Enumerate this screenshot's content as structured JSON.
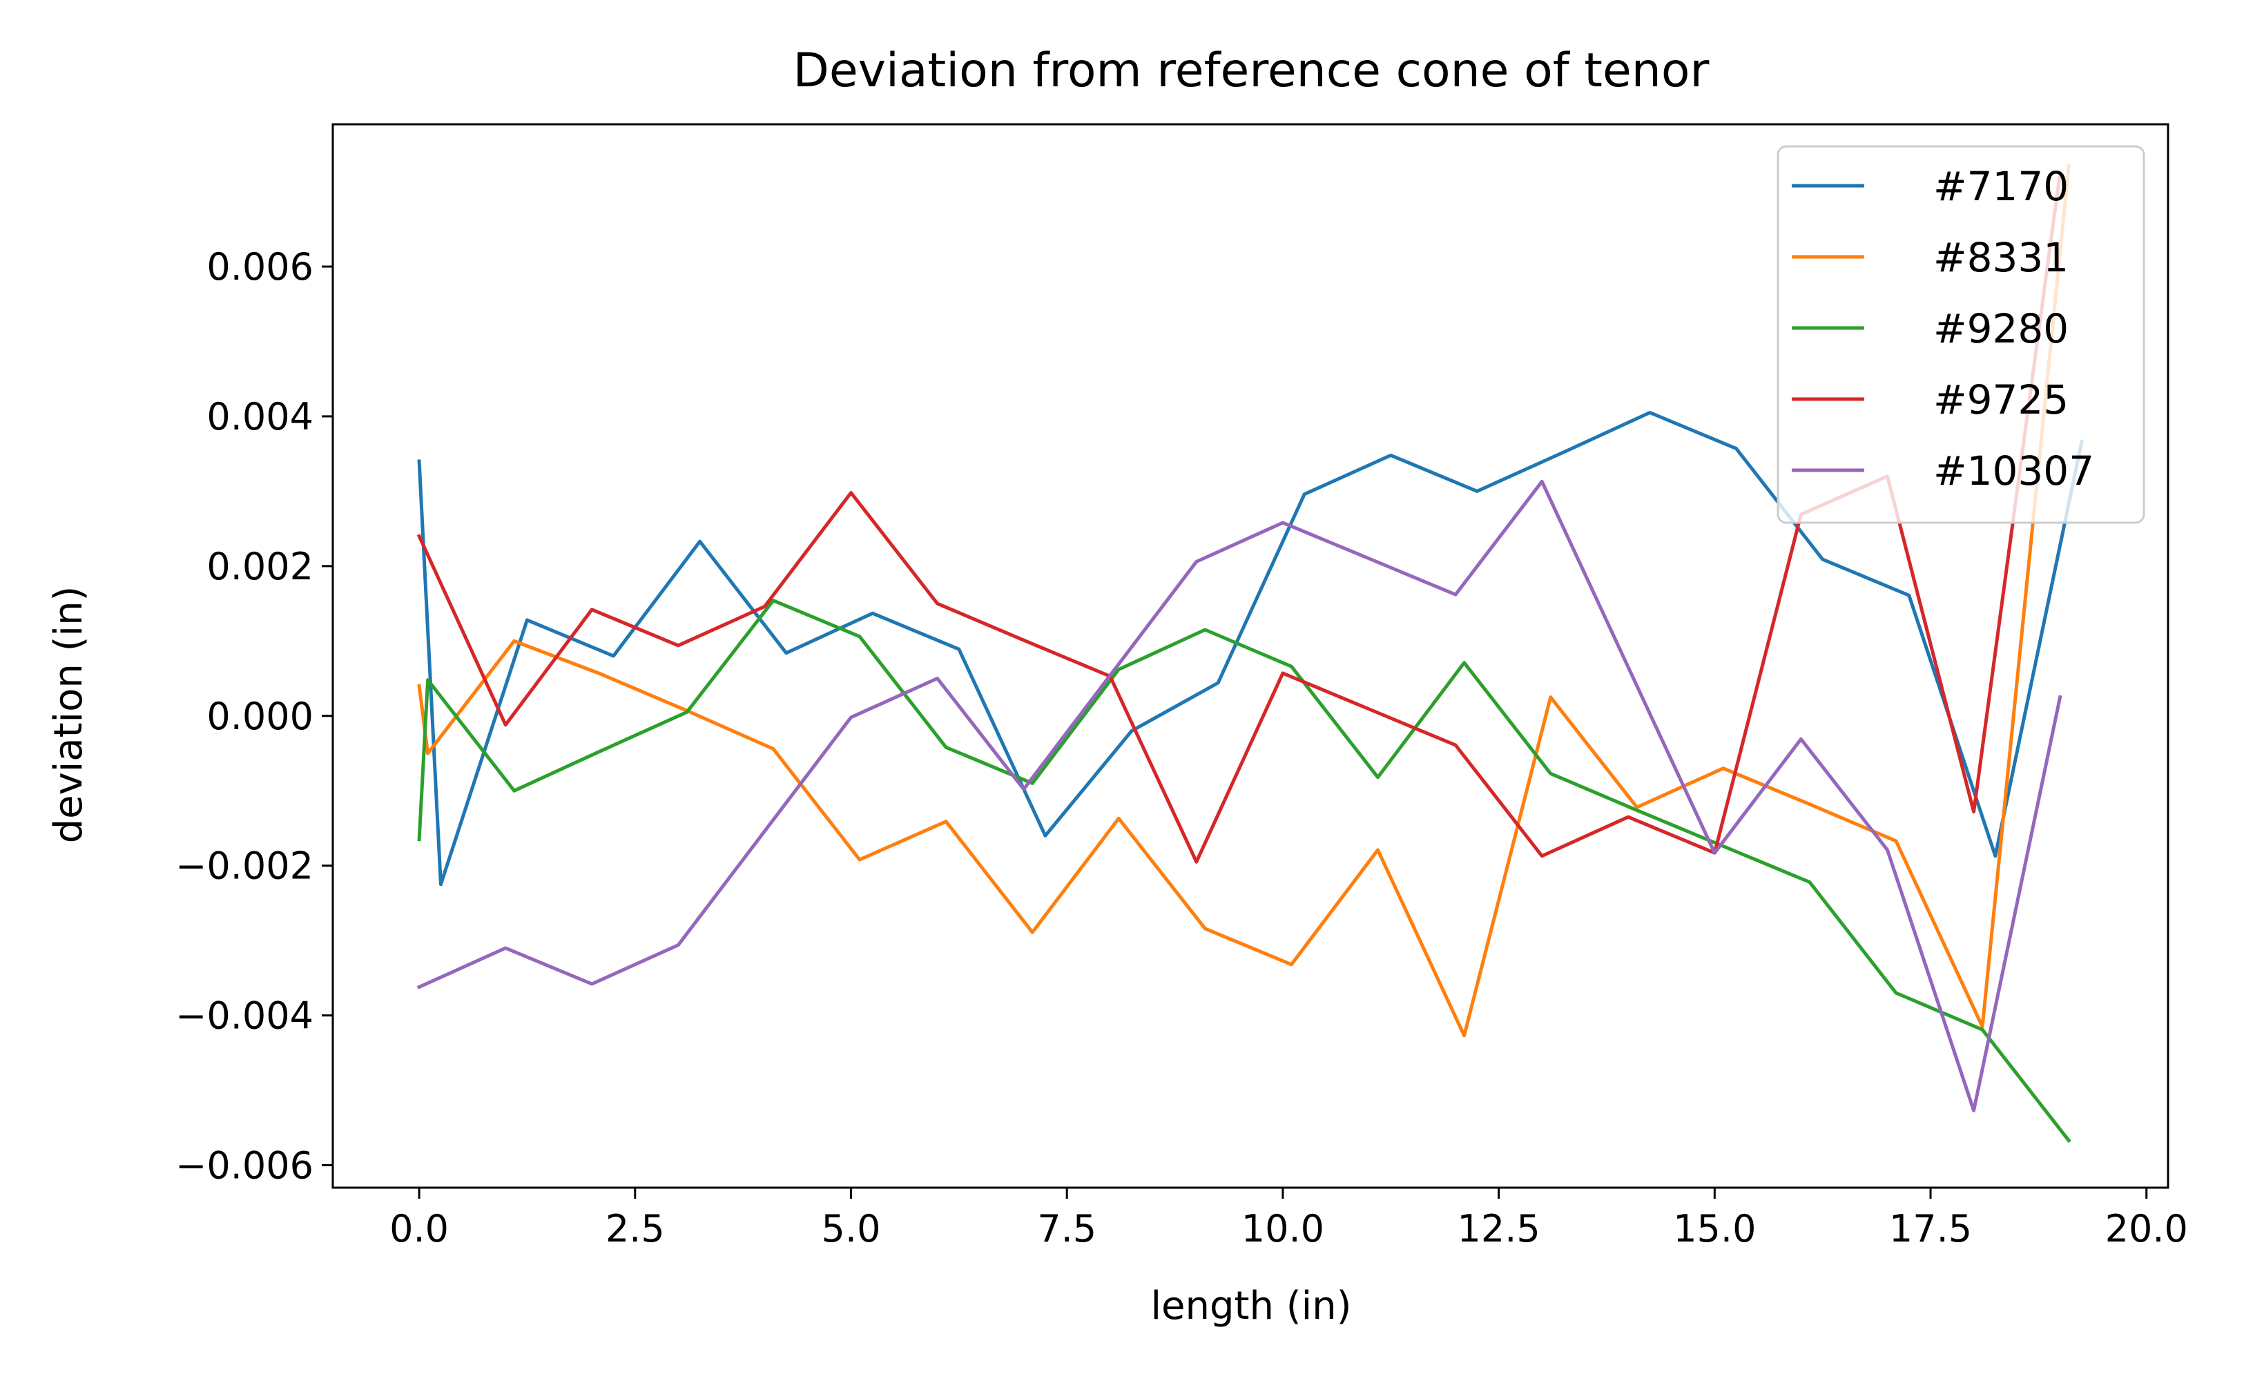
{
  "chart_data": {
    "type": "line",
    "title": "Deviation from reference cone of tenor",
    "xlabel": "length (in)",
    "ylabel": "deviation (in)",
    "xlim": [
      -1.0,
      20.25
    ],
    "ylim": [
      -0.0063,
      0.0079
    ],
    "xticks": [
      0.0,
      2.5,
      5.0,
      7.5,
      10.0,
      12.5,
      15.0,
      17.5,
      20.0
    ],
    "xtick_labels": [
      "0.0",
      "2.5",
      "5.0",
      "7.5",
      "10.0",
      "12.5",
      "15.0",
      "17.5",
      "20.0"
    ],
    "yticks": [
      -0.006,
      -0.004,
      -0.002,
      0.0,
      0.002,
      0.004,
      0.006
    ],
    "ytick_labels": [
      "−0.006",
      "−0.004",
      "−0.002",
      "0.000",
      "0.002",
      "0.004",
      "0.006"
    ],
    "grid": false,
    "legend_position": "top-right",
    "series": [
      {
        "name": "#7170",
        "color": "#1f77b4",
        "points": [
          [
            0.0,
            0.0034
          ],
          [
            0.25,
            -0.00225
          ],
          [
            1.25,
            0.00128
          ],
          [
            2.25,
            0.0008
          ],
          [
            3.25,
            0.00233
          ],
          [
            4.25,
            0.00084
          ],
          [
            5.25,
            0.00137
          ],
          [
            6.25,
            0.00089
          ],
          [
            7.25,
            -0.0016
          ],
          [
            8.25,
            -0.0002
          ],
          [
            9.25,
            0.00044
          ],
          [
            10.25,
            0.00296
          ],
          [
            11.25,
            0.00348
          ],
          [
            12.25,
            0.003
          ],
          [
            13.25,
            0.00352
          ],
          [
            14.25,
            0.00405
          ],
          [
            15.25,
            0.00357
          ],
          [
            16.25,
            0.00209
          ],
          [
            17.25,
            0.00161
          ],
          [
            18.25,
            -0.00187
          ],
          [
            19.25,
            0.00366
          ]
        ]
      },
      {
        "name": "#8331",
        "color": "#ff7f0e",
        "points": [
          [
            0.0,
            0.0004
          ],
          [
            0.1,
            -0.0005
          ],
          [
            1.1,
            0.001
          ],
          [
            2.1,
            0.00056
          ],
          [
            3.1,
            7e-05
          ],
          [
            4.1,
            -0.00044
          ],
          [
            5.1,
            -0.00192
          ],
          [
            6.1,
            -0.00141
          ],
          [
            7.1,
            -0.00289
          ],
          [
            8.1,
            -0.00137
          ],
          [
            9.1,
            -0.00284
          ],
          [
            10.1,
            -0.00332
          ],
          [
            11.1,
            -0.00179
          ],
          [
            12.1,
            -0.00427
          ],
          [
            13.1,
            0.00025
          ],
          [
            14.1,
            -0.00122
          ],
          [
            15.1,
            -0.0007
          ],
          [
            16.1,
            -0.00118
          ],
          [
            17.1,
            -0.00167
          ],
          [
            18.1,
            -0.00415
          ],
          [
            19.1,
            0.00735
          ]
        ]
      },
      {
        "name": "#9280",
        "color": "#2ca02c",
        "points": [
          [
            0.0,
            -0.00165
          ],
          [
            0.1,
            0.00048
          ],
          [
            1.1,
            -0.001
          ],
          [
            2.1,
            -0.00047
          ],
          [
            3.1,
            5e-05
          ],
          [
            4.1,
            0.00154
          ],
          [
            5.1,
            0.00106
          ],
          [
            6.1,
            -0.00042
          ],
          [
            7.1,
            -0.0009
          ],
          [
            8.1,
            0.00062
          ],
          [
            9.1,
            0.00115
          ],
          [
            10.1,
            0.00066
          ],
          [
            11.1,
            -0.00082
          ],
          [
            12.1,
            0.00071
          ],
          [
            13.1,
            -0.00077
          ],
          [
            14.1,
            -0.00126
          ],
          [
            15.1,
            -0.00174
          ],
          [
            16.1,
            -0.00222
          ],
          [
            17.1,
            -0.0037
          ],
          [
            18.1,
            -0.00419
          ],
          [
            19.1,
            -0.00567
          ]
        ]
      },
      {
        "name": "#9725",
        "color": "#d62728",
        "points": [
          [
            0.0,
            0.0024
          ],
          [
            1.0,
            -0.00012
          ],
          [
            2.0,
            0.00142
          ],
          [
            3.0,
            0.00094
          ],
          [
            4.0,
            0.00146
          ],
          [
            5.0,
            0.00298
          ],
          [
            6.0,
            0.0015
          ],
          [
            7.0,
            0.00101
          ],
          [
            8.0,
            0.00053
          ],
          [
            9.0,
            -0.00195
          ],
          [
            10.0,
            0.00057
          ],
          [
            11.0,
            9e-05
          ],
          [
            12.0,
            -0.00039
          ],
          [
            13.0,
            -0.00187
          ],
          [
            14.0,
            -0.00135
          ],
          [
            15.0,
            -0.00183
          ],
          [
            16.0,
            0.00269
          ],
          [
            17.0,
            0.0032
          ],
          [
            18.0,
            -0.00128
          ],
          [
            19.0,
            0.00725
          ]
        ]
      },
      {
        "name": "#10307",
        "color": "#9467bd",
        "points": [
          [
            0.0,
            -0.00362
          ],
          [
            1.0,
            -0.0031
          ],
          [
            2.0,
            -0.00358
          ],
          [
            3.0,
            -0.00306
          ],
          [
            4.0,
            -0.00154
          ],
          [
            5.0,
            -2e-05
          ],
          [
            6.0,
            0.0005
          ],
          [
            7.0,
            -0.00098
          ],
          [
            8.0,
            0.00054
          ],
          [
            9.0,
            0.00206
          ],
          [
            10.0,
            0.00258
          ],
          [
            11.0,
            0.0021
          ],
          [
            12.0,
            0.00162
          ],
          [
            13.0,
            0.00313
          ],
          [
            14.0,
            0.00065
          ],
          [
            15.0,
            -0.00183
          ],
          [
            16.0,
            -0.00031
          ],
          [
            17.0,
            -0.00179
          ],
          [
            18.0,
            -0.00527
          ],
          [
            19.0,
            0.00025
          ]
        ]
      }
    ]
  }
}
